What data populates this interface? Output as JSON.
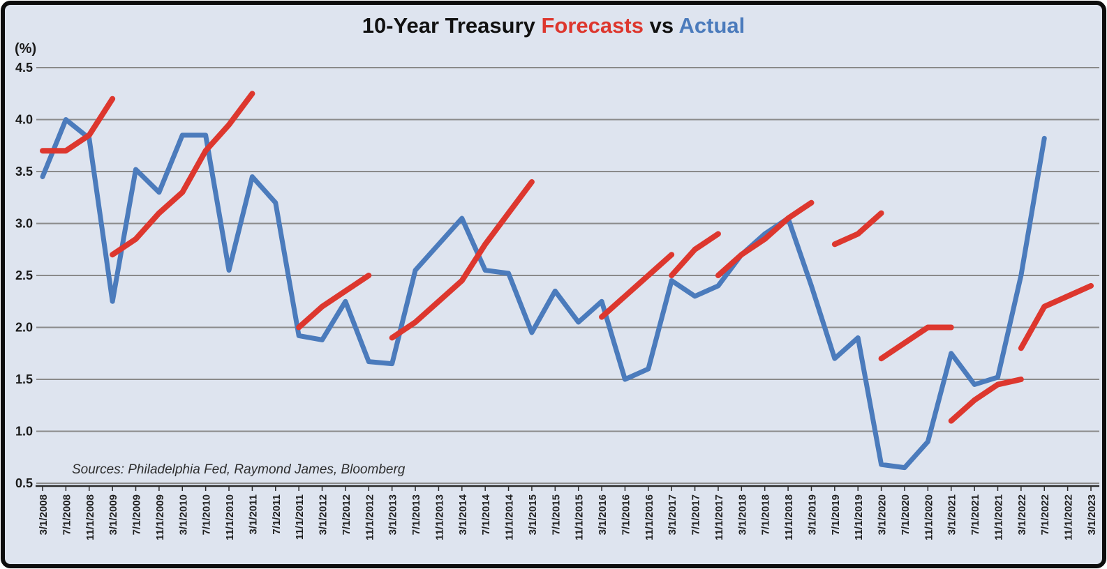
{
  "title": {
    "prefix": "10-Year Treasury ",
    "forecasts_word": "Forecasts",
    "vs_word": " vs ",
    "actual_word": "Actual"
  },
  "y_axis": {
    "unit": "(%)",
    "ticks": [
      4.5,
      4.0,
      3.5,
      3.0,
      2.5,
      2.0,
      1.5,
      1.0,
      0.5
    ]
  },
  "sources_note": "Sources: Philadelphia Fed, Raymond James, Bloomberg",
  "colors": {
    "actual": "#4b7bbc",
    "forecast": "#dd372e",
    "grid": "#8a8a8a",
    "axis": "#2a2a2a",
    "text": "#1a1a1a",
    "background": "#dee4ef"
  },
  "chart_data": {
    "type": "line",
    "title": "10-Year Treasury Forecasts vs Actual",
    "ylabel": "(%)",
    "ylim": [
      0.5,
      4.5
    ],
    "grid": true,
    "legend_position": "in-title",
    "categories": [
      "3/1/2008",
      "7/1/2008",
      "11/1/2008",
      "3/1/2009",
      "7/1/2009",
      "11/1/2009",
      "3/1/2010",
      "7/1/2010",
      "11/1/2010",
      "3/1/2011",
      "7/1/2011",
      "11/1/2011",
      "3/1/2012",
      "7/1/2012",
      "11/1/2012",
      "3/1/2013",
      "7/1/2013",
      "11/1/2013",
      "3/1/2014",
      "7/1/2014",
      "11/1/2014",
      "3/1/2015",
      "7/1/2015",
      "11/1/2015",
      "3/1/2016",
      "7/1/2016",
      "11/1/2016",
      "3/1/2017",
      "7/1/2017",
      "11/1/2017",
      "3/1/2018",
      "7/1/2018",
      "11/1/2018",
      "3/1/2019",
      "7/1/2019",
      "11/1/2019",
      "3/1/2020",
      "7/1/2020",
      "11/1/2020",
      "3/1/2021",
      "7/1/2021",
      "11/1/2021",
      "3/1/2022",
      "7/1/2022",
      "11/1/2022",
      "3/1/2023"
    ],
    "series": [
      {
        "name": "Actual",
        "color_key": "actual",
        "values": [
          3.45,
          4.0,
          3.82,
          2.25,
          3.52,
          3.3,
          3.85,
          3.85,
          2.55,
          3.45,
          3.2,
          1.92,
          1.88,
          2.25,
          1.67,
          1.65,
          2.55,
          2.8,
          3.05,
          2.55,
          2.52,
          1.95,
          2.35,
          2.05,
          2.25,
          1.5,
          1.6,
          2.45,
          2.3,
          2.4,
          2.7,
          2.9,
          3.05,
          2.4,
          1.7,
          1.9,
          0.68,
          0.65,
          0.9,
          1.75,
          1.45,
          1.52,
          2.5,
          3.82,
          null,
          null
        ]
      },
      {
        "name": "Forecasts",
        "color_key": "forecast",
        "segments": [
          {
            "start": 0,
            "values": [
              3.7,
              3.7,
              3.85,
              4.2
            ]
          },
          {
            "start": 3,
            "values": [
              2.7,
              2.85,
              3.1,
              3.3,
              3.7,
              3.95,
              4.25
            ]
          },
          {
            "start": 11,
            "values": [
              2.0,
              2.2,
              2.35,
              2.5
            ]
          },
          {
            "start": 15,
            "values": [
              1.9,
              2.05,
              2.25,
              2.45,
              2.8,
              3.1,
              3.4
            ]
          },
          {
            "start": 24,
            "values": [
              2.1,
              2.3,
              2.5,
              2.7
            ]
          },
          {
            "start": 27,
            "values": [
              2.5,
              2.75,
              2.9
            ]
          },
          {
            "start": 29,
            "values": [
              2.5,
              2.7,
              2.85,
              3.05,
              3.2
            ]
          },
          {
            "start": 34,
            "values": [
              2.8,
              2.9,
              3.1
            ]
          },
          {
            "start": 36,
            "values": [
              1.7,
              1.85,
              2.0,
              2.0
            ]
          },
          {
            "start": 39,
            "values": [
              1.1,
              1.3,
              1.45,
              1.5
            ]
          },
          {
            "start": 42,
            "values": [
              1.8,
              2.2,
              2.3,
              2.4
            ]
          }
        ]
      }
    ]
  }
}
